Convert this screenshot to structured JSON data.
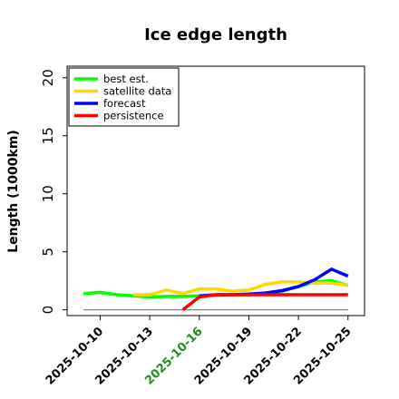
{
  "chart_data": {
    "type": "line",
    "title": "Ice edge length",
    "xlabel": "",
    "ylabel": "Length (1000km)",
    "ylim": [
      -0.5,
      21
    ],
    "yticks": [
      0,
      5,
      10,
      15,
      20
    ],
    "xlim": [
      "2025-10-08",
      "2025-10-26"
    ],
    "xticks": [
      {
        "label": "2025-10-10",
        "date": "2025-10-10",
        "color": "#000000"
      },
      {
        "label": "2025-10-13",
        "date": "2025-10-13",
        "color": "#000000"
      },
      {
        "label": "2025-10-16",
        "date": "2025-10-16",
        "color": "#228b22"
      },
      {
        "label": "2025-10-19",
        "date": "2025-10-19",
        "color": "#000000"
      },
      {
        "label": "2025-10-22",
        "date": "2025-10-22",
        "color": "#000000"
      },
      {
        "label": "2025-10-25",
        "date": "2025-10-25",
        "color": "#000000"
      }
    ],
    "grid": false,
    "legend_position": "top-left",
    "baseline": {
      "y": 0,
      "x": [
        "2025-10-09",
        "2025-10-25"
      ],
      "color": "#808080"
    },
    "series": [
      {
        "name": "best est.",
        "color": "#00ff00",
        "x": [
          "2025-10-09",
          "2025-10-10",
          "2025-10-11",
          "2025-10-12",
          "2025-10-13",
          "2025-10-14",
          "2025-10-15",
          "2025-10-16",
          "2025-10-17",
          "2025-10-18",
          "2025-10-19",
          "2025-10-20",
          "2025-10-21",
          "2025-10-22",
          "2025-10-23",
          "2025-10-24",
          "2025-10-25"
        ],
        "y": [
          1.4,
          1.5,
          1.3,
          1.2,
          1.1,
          1.15,
          1.15,
          1.2,
          1.25,
          1.3,
          1.3,
          1.4,
          1.6,
          2.0,
          2.4,
          2.5,
          2.1
        ]
      },
      {
        "name": "satellite data",
        "color": "#ffd700",
        "x": [
          "2025-10-12",
          "2025-10-13",
          "2025-10-14",
          "2025-10-15",
          "2025-10-16",
          "2025-10-17",
          "2025-10-18",
          "2025-10-19",
          "2025-10-20",
          "2025-10-21",
          "2025-10-22",
          "2025-10-23",
          "2025-10-24",
          "2025-10-25"
        ],
        "y": [
          1.3,
          1.3,
          1.7,
          1.4,
          1.8,
          1.8,
          1.6,
          1.7,
          2.2,
          2.4,
          2.4,
          2.3,
          2.3,
          2.1
        ]
      },
      {
        "name": "forecast",
        "color": "#0000ff",
        "x": [
          "2025-10-16",
          "2025-10-17",
          "2025-10-18",
          "2025-10-19",
          "2025-10-20",
          "2025-10-21",
          "2025-10-22",
          "2025-10-23",
          "2025-10-24",
          "2025-10-25"
        ],
        "y": [
          1.2,
          1.3,
          1.3,
          1.35,
          1.45,
          1.65,
          2.0,
          2.6,
          3.5,
          2.9
        ]
      },
      {
        "name": "persistence",
        "color": "#ff0000",
        "x": [
          "2025-10-15",
          "2025-10-16",
          "2025-10-17",
          "2025-10-18",
          "2025-10-19",
          "2025-10-20",
          "2025-10-21",
          "2025-10-22",
          "2025-10-23",
          "2025-10-24",
          "2025-10-25"
        ],
        "y": [
          0.0,
          1.1,
          1.3,
          1.3,
          1.3,
          1.3,
          1.3,
          1.3,
          1.3,
          1.3,
          1.3
        ]
      }
    ]
  }
}
